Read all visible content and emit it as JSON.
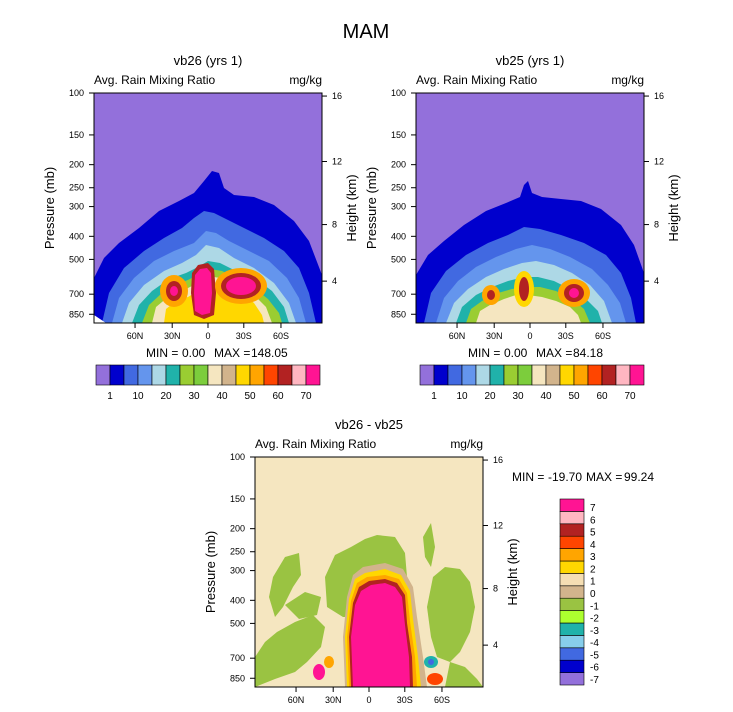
{
  "main_title": "MAM",
  "colors": {
    "bg_high": "#9370DB",
    "diff_bg": "#F5E6C0",
    "diff_green": "#9AC342",
    "diff_pink": "#FF1493"
  },
  "rain_colorbar": {
    "colors": [
      "#9370DB",
      "#0000CD",
      "#4169E1",
      "#6495ED",
      "#ADD8E6",
      "#20B2AA",
      "#9ACD32",
      "#7CCD3C",
      "#F5E6C0",
      "#D2B48C",
      "#FFD700",
      "#FFA500",
      "#FF4500",
      "#B22222",
      "#FFB6C1",
      "#FF1493"
    ],
    "labels": [
      "1",
      "10",
      "20",
      "30",
      "40",
      "50",
      "60",
      "70"
    ]
  },
  "diff_colorbar": {
    "colors": [
      "#9370DB",
      "#0000CD",
      "#4169E1",
      "#87CEEB",
      "#20B2AA",
      "#ADFF2F",
      "#9AC342",
      "#D2B48C",
      "#F5DEB3",
      "#FFD700",
      "#FFA500",
      "#FF4500",
      "#B22222",
      "#FFB6C1",
      "#FF1493"
    ],
    "labels": [
      "7",
      "6",
      "5",
      "4",
      "3",
      "2",
      "1",
      "0",
      "-1",
      "-2",
      "-3",
      "-4",
      "-5",
      "-6",
      "-7"
    ]
  },
  "chart_data": [
    {
      "type": "contour",
      "title": "vb26 (yrs 1)",
      "left_string": "Avg. Rain Mixing Ratio",
      "right_string": "mg/kg",
      "ylabel": "Pressure (mb)",
      "ylabel_right": "Height (km)",
      "pressure_ticks": [
        "100",
        "150",
        "200",
        "250",
        "300",
        "400",
        "500",
        "700",
        "850"
      ],
      "height_ticks": [
        "16",
        "12",
        "8",
        "4"
      ],
      "lat_ticks": [
        "60N",
        "30N",
        "0",
        "30S",
        "60S"
      ],
      "min_label": "MIN =",
      "min_value": "0.00",
      "max_label": "MAX =",
      "max_value": "148.05"
    },
    {
      "type": "contour",
      "title": "vb25 (yrs 1)",
      "left_string": "Avg. Rain Mixing Ratio",
      "right_string": "mg/kg",
      "ylabel": "Pressure (mb)",
      "ylabel_right": "Height (km)",
      "pressure_ticks": [
        "100",
        "150",
        "200",
        "250",
        "300",
        "400",
        "500",
        "700",
        "850"
      ],
      "height_ticks": [
        "16",
        "12",
        "8",
        "4"
      ],
      "lat_ticks": [
        "60N",
        "30N",
        "0",
        "30S",
        "60S"
      ],
      "min_label": "MIN =",
      "min_value": "0.00",
      "max_label": "MAX =",
      "max_value": "84.18"
    },
    {
      "type": "contour",
      "title": "vb26 - vb25",
      "left_string": "Avg. Rain Mixing Ratio",
      "right_string": "mg/kg",
      "ylabel": "Pressure (mb)",
      "ylabel_right": "Height (km)",
      "pressure_ticks": [
        "100",
        "150",
        "200",
        "250",
        "300",
        "400",
        "500",
        "700",
        "850"
      ],
      "height_ticks": [
        "16",
        "12",
        "8",
        "4"
      ],
      "lat_ticks": [
        "60N",
        "30N",
        "0",
        "30S",
        "60S"
      ],
      "min_label": "MIN =",
      "min_value": "-19.70",
      "max_label": "MAX =",
      "max_value": "99.24"
    }
  ]
}
